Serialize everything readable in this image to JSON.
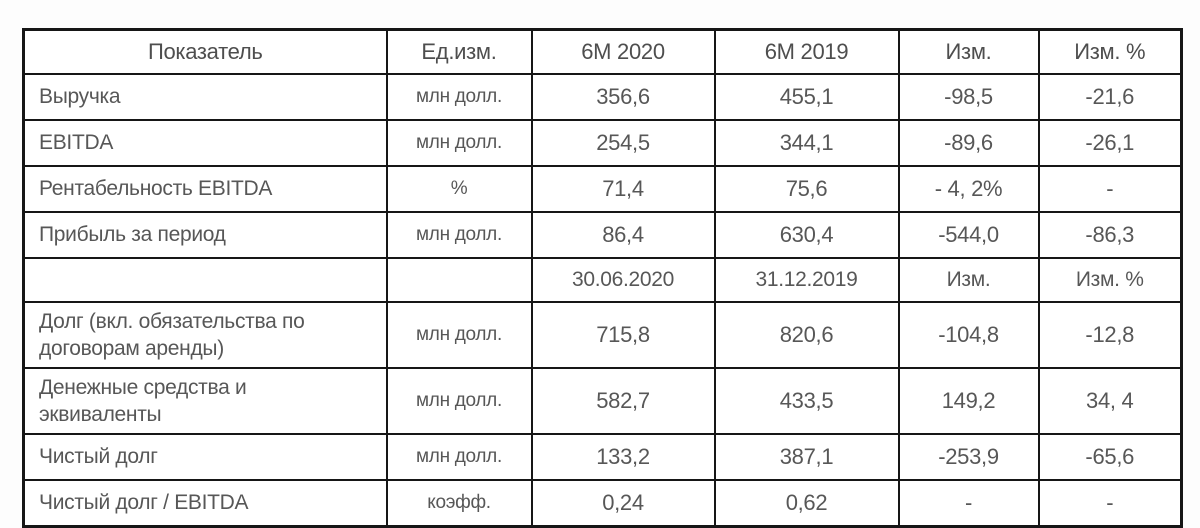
{
  "colors": {
    "border": "#161616",
    "text": "#575757",
    "cell_background": "#ffffff",
    "page_background": "#fdfdfd"
  },
  "table": {
    "columns": [
      "Показатель",
      "Ед.изм.",
      "6М 2020",
      "6М 2019",
      "Изм.",
      "Изм. %"
    ],
    "rows": [
      {
        "cells": [
          "Выручка",
          "млн долл.",
          "356,6",
          "455,1",
          "-98,5",
          "-21,6"
        ]
      },
      {
        "cells": [
          "EBITDA",
          "млн долл.",
          "254,5",
          "344,1",
          "-89,6",
          "-26,1"
        ]
      },
      {
        "cells": [
          "Рентабельность EBITDA",
          "%",
          "71,4",
          "75,6",
          "- 4, 2%",
          "-"
        ]
      },
      {
        "cells": [
          "Прибыль за период",
          "млн долл.",
          "86,4",
          "630,4",
          "-544,0",
          "-86,3"
        ]
      },
      {
        "cells": [
          "",
          "",
          "30.06.2020",
          "31.12.2019",
          "Изм.",
          "Изм. %"
        ]
      },
      {
        "cells": [
          "Долг (вкл. обязательства по договорам аренды)",
          "млн долл.",
          "715,8",
          "820,6",
          "-104,8",
          "-12,8"
        ]
      },
      {
        "cells": [
          "Денежные средства и эквиваленты",
          "млн долл.",
          "582,7",
          "433,5",
          "149,2",
          "34, 4"
        ]
      },
      {
        "cells": [
          "Чистый долг",
          "млн долл.",
          "133,2",
          "387,1",
          "-253,9",
          "-65,6"
        ]
      },
      {
        "cells": [
          "Чистый долг / EBITDA",
          "коэфф.",
          "0,24",
          "0,62",
          "-",
          "-"
        ]
      }
    ]
  }
}
